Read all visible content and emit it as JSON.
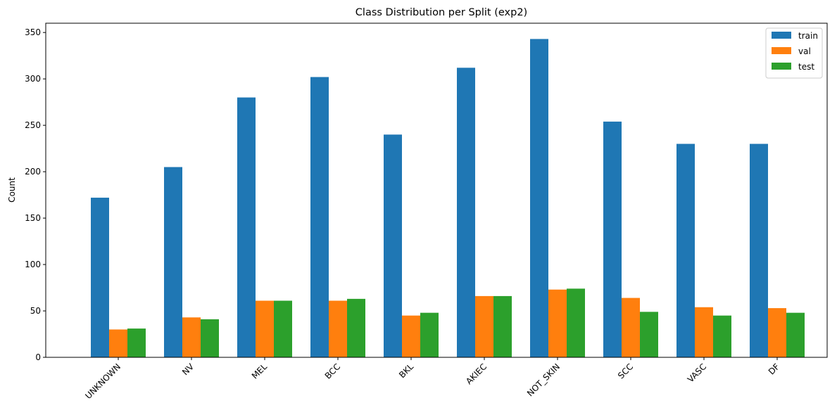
{
  "chart_data": {
    "type": "bar",
    "title": "Class Distribution per Split (exp2)",
    "xlabel": "",
    "ylabel": "Count",
    "ylim": [
      0,
      360
    ],
    "yticks": [
      0,
      50,
      100,
      150,
      200,
      250,
      300,
      350
    ],
    "categories": [
      "UNKNOWN",
      "NV",
      "MEL",
      "BCC",
      "BKL",
      "AKIEC",
      "NOT_SKIN",
      "SCC",
      "VASC",
      "DF"
    ],
    "series": [
      {
        "name": "train",
        "color": "#1f77b4",
        "values": [
          172,
          205,
          280,
          302,
          240,
          312,
          343,
          254,
          230,
          230
        ]
      },
      {
        "name": "val",
        "color": "#ff7f0e",
        "values": [
          30,
          43,
          61,
          61,
          45,
          66,
          73,
          64,
          54,
          53
        ]
      },
      {
        "name": "test",
        "color": "#2ca02c",
        "values": [
          31,
          41,
          61,
          63,
          48,
          66,
          74,
          49,
          45,
          48
        ]
      }
    ],
    "legend_position": "top-right",
    "grid": false
  }
}
